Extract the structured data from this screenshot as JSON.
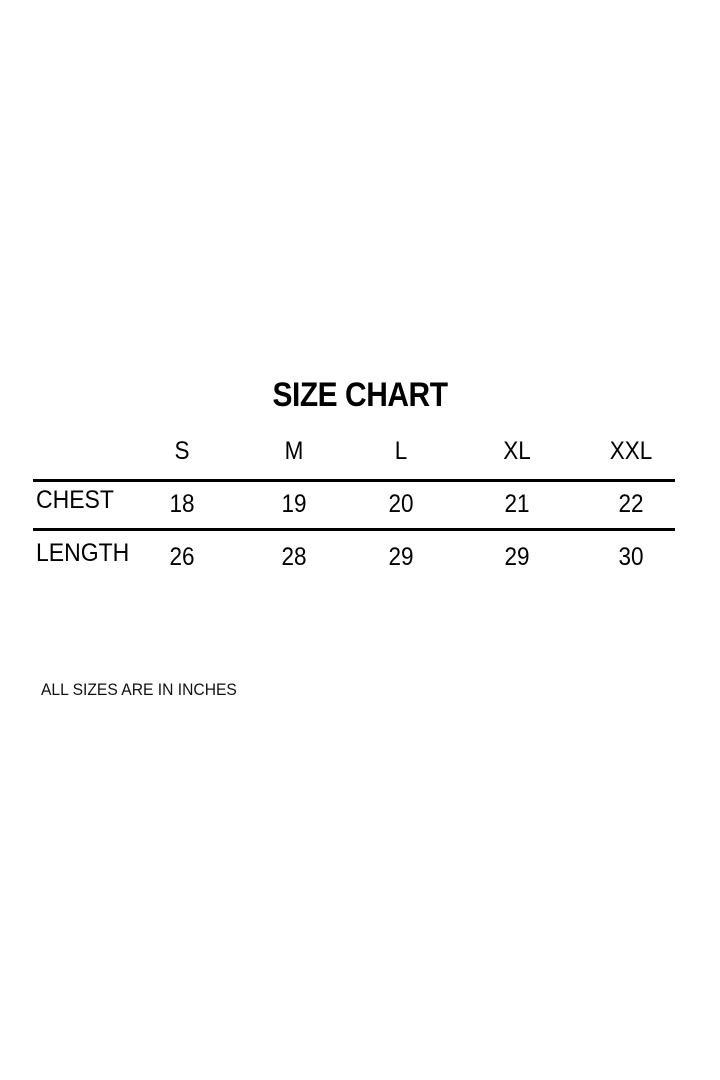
{
  "chart_data": {
    "type": "table",
    "title": "SIZE CHART",
    "columns": [
      "S",
      "M",
      "L",
      "XL",
      "XXL"
    ],
    "rows": [
      {
        "label": "CHEST",
        "values": [
          18,
          19,
          20,
          21,
          22
        ]
      },
      {
        "label": "LENGTH",
        "values": [
          26,
          28,
          29,
          29,
          30
        ]
      }
    ],
    "note": "ALL SIZES ARE IN INCHES"
  }
}
